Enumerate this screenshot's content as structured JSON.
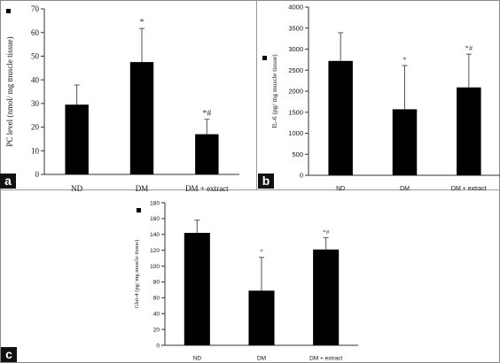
{
  "chart_data": [
    {
      "panel": "a",
      "type": "bar",
      "ylabel": "PC level (nmol/ mg muscle tissue)",
      "xlabel": "",
      "categories": [
        "ND",
        "DM",
        "DM + extract"
      ],
      "values": [
        29.5,
        47.5,
        17
      ],
      "errors": [
        8.3,
        14.2,
        6.3
      ],
      "annotations": [
        "",
        "*",
        "*#"
      ],
      "ylim": [
        0,
        70
      ],
      "yticks": [
        0,
        10,
        20,
        30,
        40,
        50,
        60,
        70
      ],
      "legend": "none",
      "grid": false
    },
    {
      "panel": "b",
      "type": "bar",
      "ylabel": "IL-6 (pg/ mg muscle tissue)",
      "xlabel": "",
      "categories": [
        "ND",
        "DM",
        "DM + extract"
      ],
      "values": [
        2720,
        1570,
        2090
      ],
      "errors": [
        670,
        1040,
        790
      ],
      "annotations": [
        "",
        "*",
        "*#"
      ],
      "ylim": [
        0,
        4000
      ],
      "yticks": [
        0,
        500,
        1000,
        1500,
        2000,
        2500,
        3000,
        3500,
        4000
      ],
      "legend": "none",
      "grid": false
    },
    {
      "panel": "c",
      "type": "bar",
      "ylabel": "Glut-4 (pg/ mg muscle tissue)",
      "xlabel": "",
      "categories": [
        "ND",
        "DM",
        "DM + extract"
      ],
      "values": [
        142,
        69,
        121
      ],
      "errors": [
        16,
        42,
        15
      ],
      "annotations": [
        "",
        "*",
        "*#"
      ],
      "ylim": [
        0,
        180
      ],
      "yticks": [
        0,
        20,
        40,
        60,
        80,
        100,
        120,
        140,
        160,
        180
      ],
      "legend": "none",
      "grid": false
    }
  ],
  "panel_labels": [
    "a",
    "b",
    "c"
  ],
  "colors": {
    "bar": "#000000",
    "axis": "#333333",
    "text": "#111111"
  }
}
